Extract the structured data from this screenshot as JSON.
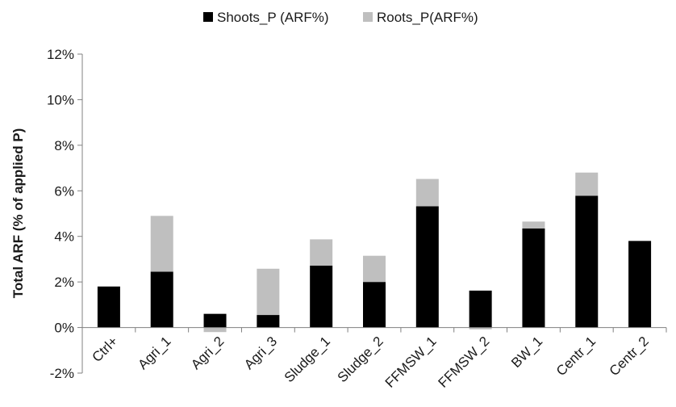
{
  "chart_data": {
    "type": "bar",
    "stacked": true,
    "title": "",
    "xlabel": "",
    "ylabel": "Total ARF (% of applied P)",
    "categories": [
      "Ctrl+",
      "Agri_1",
      "Agri_2",
      "Agri_3",
      "Sludge_1",
      "Sludge_2",
      "FFMSW_1",
      "FFMSW_2",
      "BW_1",
      "Centr_1",
      "Centr_2"
    ],
    "series": [
      {
        "name": "Shoots_P (ARF%)",
        "color": "#000000",
        "values": [
          1.8,
          2.45,
          0.6,
          0.55,
          2.72,
          2.0,
          5.32,
          1.62,
          4.35,
          5.78,
          3.8
        ]
      },
      {
        "name": "Roots_P(ARF%)",
        "color": "#bfbfbf",
        "values": [
          0.0,
          2.45,
          -0.2,
          2.03,
          1.15,
          1.15,
          1.2,
          -0.08,
          0.3,
          1.02,
          0.0
        ]
      }
    ],
    "ylim": [
      -2,
      12
    ],
    "yticks": [
      -2,
      0,
      2,
      4,
      6,
      8,
      10,
      12
    ],
    "ytick_labels": [
      "-2%",
      "0%",
      "2%",
      "4%",
      "6%",
      "8%",
      "10%",
      "12%"
    ],
    "grid": false,
    "legend": "top-center"
  }
}
